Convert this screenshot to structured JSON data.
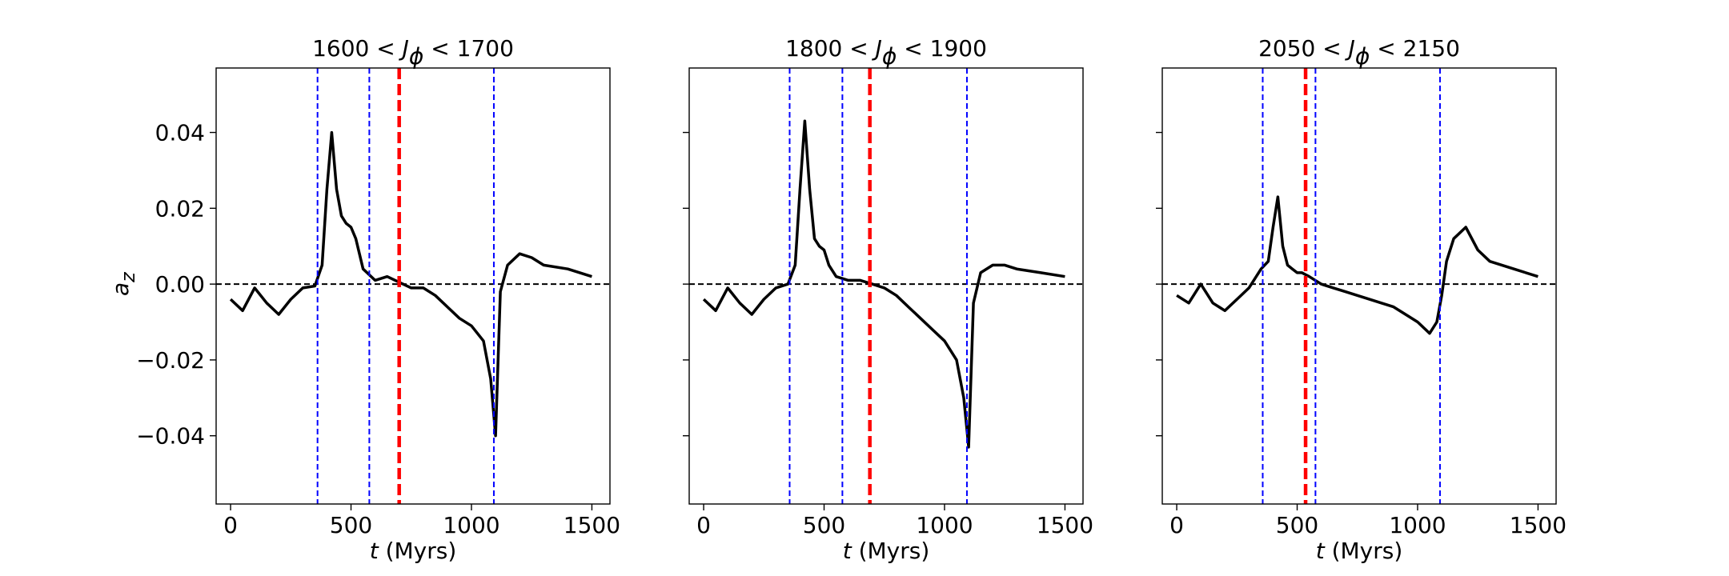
{
  "chart_data": [
    {
      "type": "line",
      "title": "1600 < Jϕ < 1700",
      "xlabel": "t (Myrs)",
      "ylabel": "az",
      "x": [
        0,
        50,
        100,
        150,
        200,
        250,
        300,
        350,
        380,
        400,
        420,
        440,
        460,
        480,
        500,
        520,
        550,
        600,
        650,
        700,
        750,
        800,
        850,
        900,
        950,
        1000,
        1050,
        1080,
        1100,
        1120,
        1150,
        1200,
        1250,
        1300,
        1400,
        1500
      ],
      "series": [
        {
          "color": "#000000",
          "values": [
            -0.004,
            -0.007,
            -0.001,
            -0.005,
            -0.008,
            -0.004,
            -0.001,
            -0.0005,
            0.005,
            0.025,
            0.04,
            0.025,
            0.018,
            0.016,
            0.015,
            0.012,
            0.004,
            0.001,
            0.002,
            0.0005,
            -0.001,
            -0.001,
            -0.003,
            -0.006,
            -0.009,
            -0.011,
            -0.015,
            -0.025,
            -0.04,
            -0.002,
            0.005,
            0.008,
            0.007,
            0.005,
            0.004,
            0.002
          ]
        }
      ],
      "xlim": [
        -60,
        1575
      ],
      "ylim": [
        -0.058,
        0.057
      ],
      "xticks": [
        0,
        500,
        1000,
        1500
      ],
      "yticks": [
        {
          "value": -0.04,
          "label": "−0.04"
        },
        {
          "value": -0.02,
          "label": "−0.02"
        },
        {
          "value": 0,
          "label": "0.00"
        },
        0.02,
        0.04
      ],
      "hline": 0,
      "hline_color": "#000000",
      "vlines": [
        {
          "value": 361,
          "color": "#0000ff"
        },
        {
          "value": 576,
          "color": "#0000ff"
        },
        {
          "value": 1093,
          "color": "#0000ff"
        },
        {
          "value": 700,
          "color": "#ff0000"
        }
      ]
    },
    {
      "type": "line",
      "title": "1800 < Jϕ < 1900",
      "xlabel": "t (Myrs)",
      "x": [
        0,
        50,
        100,
        150,
        200,
        250,
        300,
        350,
        380,
        400,
        420,
        440,
        460,
        480,
        500,
        520,
        550,
        600,
        650,
        700,
        750,
        800,
        850,
        900,
        950,
        1000,
        1050,
        1080,
        1100,
        1120,
        1150,
        1200,
        1250,
        1300,
        1400,
        1500
      ],
      "series": [
        {
          "color": "#000000",
          "values": [
            -0.004,
            -0.007,
            -0.001,
            -0.005,
            -0.008,
            -0.004,
            -0.001,
            0.0,
            0.005,
            0.025,
            0.043,
            0.025,
            0.012,
            0.01,
            0.009,
            0.005,
            0.002,
            0.001,
            0.001,
            0.0,
            -0.001,
            -0.003,
            -0.006,
            -0.009,
            -0.012,
            -0.015,
            -0.02,
            -0.03,
            -0.043,
            -0.005,
            0.003,
            0.005,
            0.005,
            0.004,
            0.003,
            0.002
          ]
        }
      ],
      "xlim": [
        -60,
        1575
      ],
      "ylim": [
        -0.058,
        0.057
      ],
      "xticks": [
        0,
        500,
        1000,
        1500
      ],
      "hline": 0,
      "hline_color": "#000000",
      "vlines": [
        {
          "value": 357,
          "color": "#0000ff"
        },
        {
          "value": 576,
          "color": "#0000ff"
        },
        {
          "value": 1093,
          "color": "#0000ff"
        },
        {
          "value": 690,
          "color": "#ff0000"
        }
      ]
    },
    {
      "type": "line",
      "title": "2050 < Jϕ < 2150",
      "xlabel": "t (Myrs)",
      "x": [
        0,
        50,
        100,
        150,
        200,
        250,
        300,
        350,
        380,
        400,
        420,
        440,
        460,
        480,
        500,
        520,
        550,
        600,
        650,
        700,
        750,
        800,
        850,
        900,
        950,
        1000,
        1050,
        1080,
        1100,
        1120,
        1150,
        1200,
        1250,
        1300,
        1400,
        1500
      ],
      "series": [
        {
          "color": "#000000",
          "values": [
            -0.003,
            -0.005,
            0.0,
            -0.005,
            -0.007,
            -0.004,
            -0.001,
            0.004,
            0.006,
            0.015,
            0.023,
            0.01,
            0.005,
            0.004,
            0.003,
            0.003,
            0.002,
            0.0,
            -0.001,
            -0.002,
            -0.003,
            -0.004,
            -0.005,
            -0.006,
            -0.008,
            -0.01,
            -0.013,
            -0.01,
            -0.003,
            0.006,
            0.012,
            0.015,
            0.009,
            0.006,
            0.004,
            0.002
          ]
        }
      ],
      "xlim": [
        -60,
        1575
      ],
      "ylim": [
        -0.058,
        0.057
      ],
      "xticks": [
        0,
        500,
        1000,
        1500
      ],
      "hline": 0,
      "hline_color": "#000000",
      "vlines": [
        {
          "value": 357,
          "color": "#0000ff"
        },
        {
          "value": 576,
          "color": "#0000ff"
        },
        {
          "value": 1093,
          "color": "#0000ff"
        },
        {
          "value": 535,
          "color": "#ff0000"
        }
      ]
    }
  ]
}
